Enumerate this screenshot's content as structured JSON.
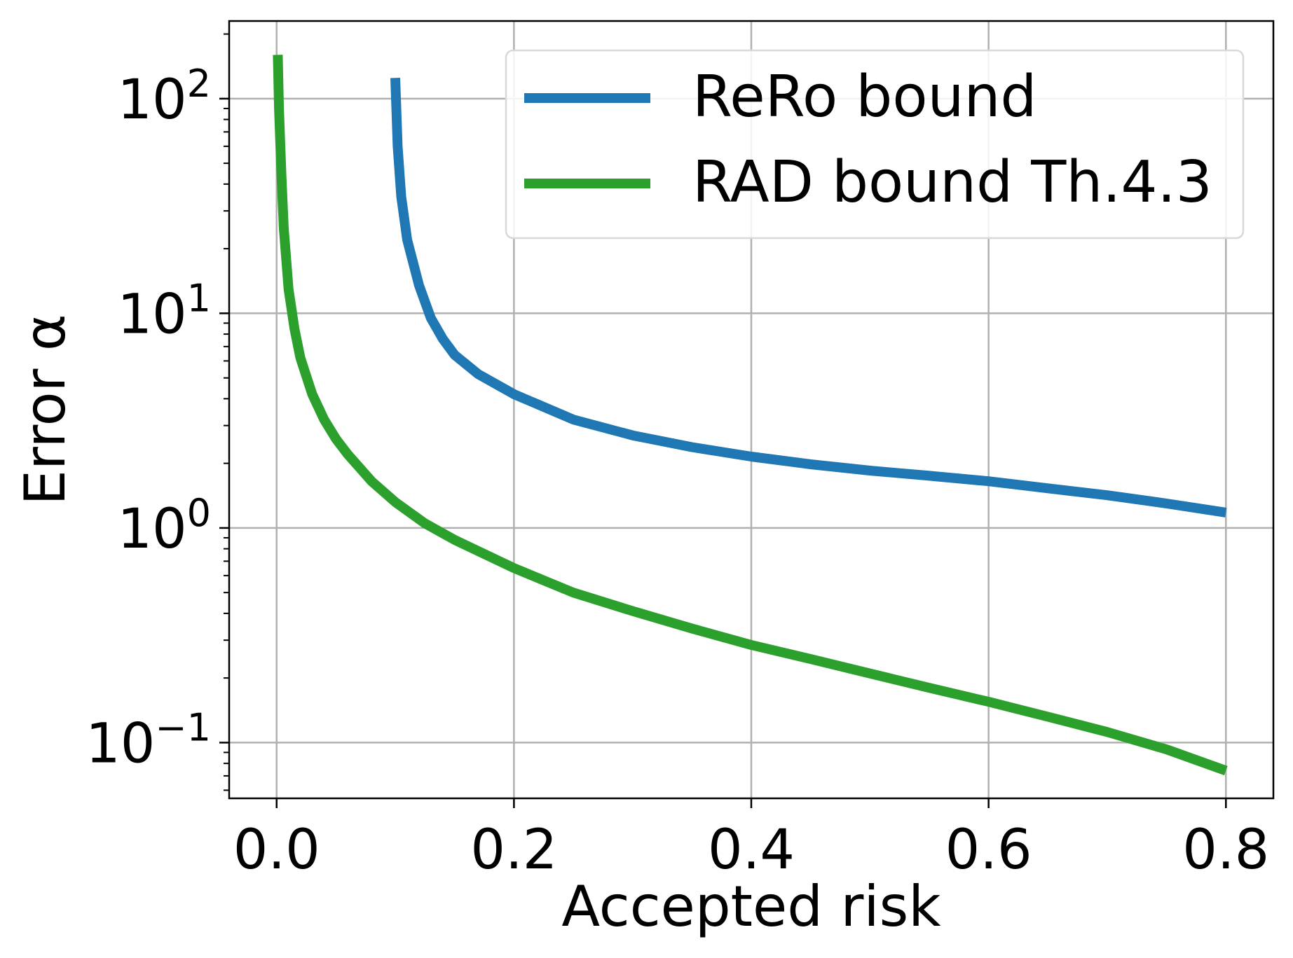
{
  "chart_data": {
    "type": "line",
    "xlabel": "Accepted risk",
    "ylabel": "Error α",
    "yscale": "log",
    "xlim": [
      -0.04,
      0.84
    ],
    "ylim": [
      0.055,
      230
    ],
    "grid": true,
    "legend_position": "top-right",
    "x_ticks": [
      "0.0",
      "0.2",
      "0.4",
      "0.6",
      "0.8"
    ],
    "y_ticks": [
      {
        "base": "10",
        "exp": "−1",
        "value": 0.1
      },
      {
        "base": "10",
        "exp": "0",
        "value": 1
      },
      {
        "base": "10",
        "exp": "1",
        "value": 10
      },
      {
        "base": "10",
        "exp": "2",
        "value": 100
      }
    ],
    "series": [
      {
        "name": "ReRo bound",
        "color": "#1f77b4",
        "points": [
          [
            0.1,
            125
          ],
          [
            0.102,
            60
          ],
          [
            0.105,
            35
          ],
          [
            0.11,
            22
          ],
          [
            0.12,
            13.5
          ],
          [
            0.13,
            9.5
          ],
          [
            0.14,
            7.6
          ],
          [
            0.15,
            6.4
          ],
          [
            0.17,
            5.2
          ],
          [
            0.2,
            4.2
          ],
          [
            0.25,
            3.2
          ],
          [
            0.3,
            2.7
          ],
          [
            0.35,
            2.38
          ],
          [
            0.4,
            2.15
          ],
          [
            0.45,
            1.98
          ],
          [
            0.5,
            1.85
          ],
          [
            0.55,
            1.75
          ],
          [
            0.6,
            1.65
          ],
          [
            0.65,
            1.53
          ],
          [
            0.7,
            1.42
          ],
          [
            0.75,
            1.3
          ],
          [
            0.8,
            1.18
          ]
        ]
      },
      {
        "name": "RAD bound Th.4.3",
        "color": "#2ca02c",
        "points": [
          [
            0.001,
            160
          ],
          [
            0.002,
            90
          ],
          [
            0.004,
            45
          ],
          [
            0.006,
            25
          ],
          [
            0.01,
            13
          ],
          [
            0.015,
            8.5
          ],
          [
            0.02,
            6.2
          ],
          [
            0.03,
            4.2
          ],
          [
            0.04,
            3.2
          ],
          [
            0.05,
            2.6
          ],
          [
            0.06,
            2.2
          ],
          [
            0.08,
            1.65
          ],
          [
            0.1,
            1.32
          ],
          [
            0.125,
            1.05
          ],
          [
            0.15,
            0.88
          ],
          [
            0.2,
            0.65
          ],
          [
            0.25,
            0.5
          ],
          [
            0.3,
            0.41
          ],
          [
            0.35,
            0.34
          ],
          [
            0.4,
            0.285
          ],
          [
            0.45,
            0.245
          ],
          [
            0.5,
            0.21
          ],
          [
            0.55,
            0.18
          ],
          [
            0.6,
            0.155
          ],
          [
            0.65,
            0.132
          ],
          [
            0.7,
            0.112
          ],
          [
            0.75,
            0.093
          ],
          [
            0.8,
            0.074
          ]
        ]
      }
    ]
  }
}
